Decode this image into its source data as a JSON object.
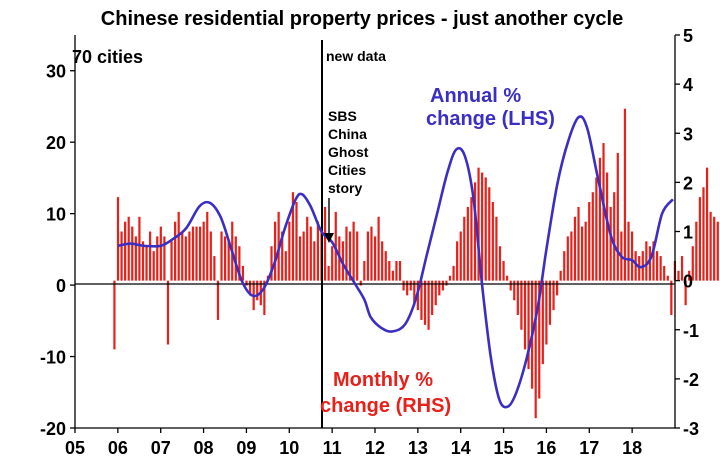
{
  "chart_data": {
    "type": "bar+line",
    "title": "Chinese residential property prices - just another cycle",
    "subtitle": "70 cities",
    "x_axis": {
      "ticks": [
        "05",
        "06",
        "07",
        "08",
        "09",
        "10",
        "11",
        "12",
        "13",
        "14",
        "15",
        "16",
        "17",
        "18"
      ],
      "range": [
        2005.0,
        2019.0
      ]
    },
    "left_axis": {
      "ticks": [
        -20,
        -10,
        0,
        10,
        20,
        30
      ],
      "range": [
        -20,
        35
      ]
    },
    "right_axis": {
      "ticks": [
        -3,
        -2,
        -1,
        0,
        1,
        2,
        3,
        4,
        5
      ],
      "range": [
        -3,
        5
      ]
    },
    "series": [
      {
        "name": "Annual % change (LHS)",
        "type": "line",
        "axis": "left",
        "color": "#3a2fc2",
        "points": [
          [
            2006.0,
            5.5
          ],
          [
            2006.3,
            5.8
          ],
          [
            2006.6,
            5.5
          ],
          [
            2007.0,
            5.5
          ],
          [
            2007.3,
            6.5
          ],
          [
            2007.6,
            8.0
          ],
          [
            2007.9,
            11.0
          ],
          [
            2008.15,
            11.5
          ],
          [
            2008.4,
            9.5
          ],
          [
            2008.65,
            5.0
          ],
          [
            2008.9,
            0.5
          ],
          [
            2009.15,
            -1.5
          ],
          [
            2009.4,
            -0.5
          ],
          [
            2009.65,
            3.0
          ],
          [
            2009.9,
            8.0
          ],
          [
            2010.15,
            12.0
          ],
          [
            2010.3,
            12.7
          ],
          [
            2010.5,
            11.0
          ],
          [
            2010.75,
            7.5
          ],
          [
            2011.0,
            6.0
          ],
          [
            2011.25,
            3.0
          ],
          [
            2011.5,
            0.5
          ],
          [
            2011.75,
            -2.0
          ],
          [
            2011.9,
            -4.5
          ],
          [
            2012.15,
            -6.0
          ],
          [
            2012.4,
            -6.5
          ],
          [
            2012.7,
            -5.5
          ],
          [
            2012.95,
            -2.0
          ],
          [
            2013.2,
            4.0
          ],
          [
            2013.45,
            10.0
          ],
          [
            2013.7,
            16.0
          ],
          [
            2013.9,
            19.0
          ],
          [
            2014.1,
            18.0
          ],
          [
            2014.3,
            12.0
          ],
          [
            2014.5,
            0.0
          ],
          [
            2014.7,
            -10.0
          ],
          [
            2014.9,
            -16.0
          ],
          [
            2015.1,
            -17.0
          ],
          [
            2015.3,
            -15.0
          ],
          [
            2015.55,
            -10.0
          ],
          [
            2015.8,
            -3.0
          ],
          [
            2016.0,
            5.0
          ],
          [
            2016.25,
            14.0
          ],
          [
            2016.5,
            20.0
          ],
          [
            2016.75,
            23.5
          ],
          [
            2016.95,
            22.0
          ],
          [
            2017.2,
            15.0
          ],
          [
            2017.5,
            7.0
          ],
          [
            2017.75,
            4.0
          ],
          [
            2018.0,
            3.5
          ],
          [
            2018.2,
            2.5
          ],
          [
            2018.45,
            4.0
          ],
          [
            2018.7,
            10.0
          ],
          [
            2018.95,
            12.0
          ]
        ]
      },
      {
        "name": "Monthly % change (RHS)",
        "type": "bar",
        "axis": "right",
        "color": "#e8201a",
        "x_start": 2005.92,
        "x_step": 0.0833,
        "values": [
          -1.4,
          1.7,
          1.0,
          1.2,
          1.3,
          1.1,
          0.9,
          1.3,
          0.8,
          0.7,
          1.0,
          0.6,
          0.9,
          1.1,
          0.9,
          -1.3,
          0.8,
          1.2,
          1.4,
          1.0,
          0.9,
          1.0,
          1.1,
          1.1,
          1.1,
          1.2,
          1.4,
          1.0,
          0.5,
          -0.8,
          1.0,
          0.9,
          0.8,
          1.2,
          0.9,
          0.7,
          0.3,
          -0.1,
          -0.3,
          -0.6,
          -0.4,
          -0.5,
          -0.7,
          0.1,
          0.7,
          1.2,
          1.4,
          1.0,
          0.6,
          1.2,
          1.8,
          1.6,
          0.9,
          1.0,
          1.3,
          1.1,
          0.8,
          1.2,
          1.0,
          1.5,
          0.3,
          0.7,
          1.4,
          0.9,
          0.8,
          1.1,
          1.0,
          1.2,
          1.0,
          -0.1,
          0.4,
          1.0,
          1.1,
          0.9,
          1.3,
          0.8,
          0.6,
          0.4,
          0.2,
          0.4,
          0.4,
          -0.2,
          -0.3,
          -0.2,
          -0.5,
          -0.6,
          -0.8,
          -0.9,
          -1.0,
          -0.7,
          -0.5,
          -0.3,
          -0.2,
          -0.1,
          0.1,
          0.3,
          0.8,
          1.0,
          1.3,
          1.5,
          1.7,
          2.0,
          2.3,
          2.2,
          2.1,
          1.9,
          1.6,
          1.3,
          0.7,
          0.4,
          0.1,
          -0.2,
          -0.4,
          -0.7,
          -1.0,
          -1.4,
          -1.8,
          -2.2,
          -2.8,
          -2.4,
          -1.7,
          -1.3,
          -0.9,
          -0.6,
          -0.3,
          0.2,
          0.6,
          0.9,
          1.0,
          1.3,
          1.5,
          1.1,
          1.2,
          1.6,
          1.8,
          2.1,
          2.5,
          2.8,
          2.2,
          1.5,
          1.8,
          2.6,
          1.0,
          3.5,
          1.2,
          1.0,
          0.6,
          0.5,
          0.6,
          0.8,
          0.7,
          0.8,
          0.6,
          0.5,
          0.3,
          0.1,
          -0.7,
          0.4,
          0.2,
          0.5,
          -0.5,
          0.2,
          0.7,
          1.2,
          1.7,
          1.9,
          2.3,
          1.4,
          1.3,
          1.2,
          1.0
        ]
      }
    ],
    "annotations": {
      "new_data": "new data",
      "sbs_lines": [
        "SBS",
        "China",
        "Ghost",
        "Cities",
        "story"
      ],
      "annual_lines": [
        "Annual %",
        "change (LHS)"
      ],
      "monthly_lines": [
        "Monthly %",
        "change (RHS)"
      ]
    },
    "colors": {
      "line": "#3a2fc2",
      "bars": "#e8201a",
      "annual_label": "#3a2fc2",
      "monthly_label": "#e8201a"
    }
  }
}
